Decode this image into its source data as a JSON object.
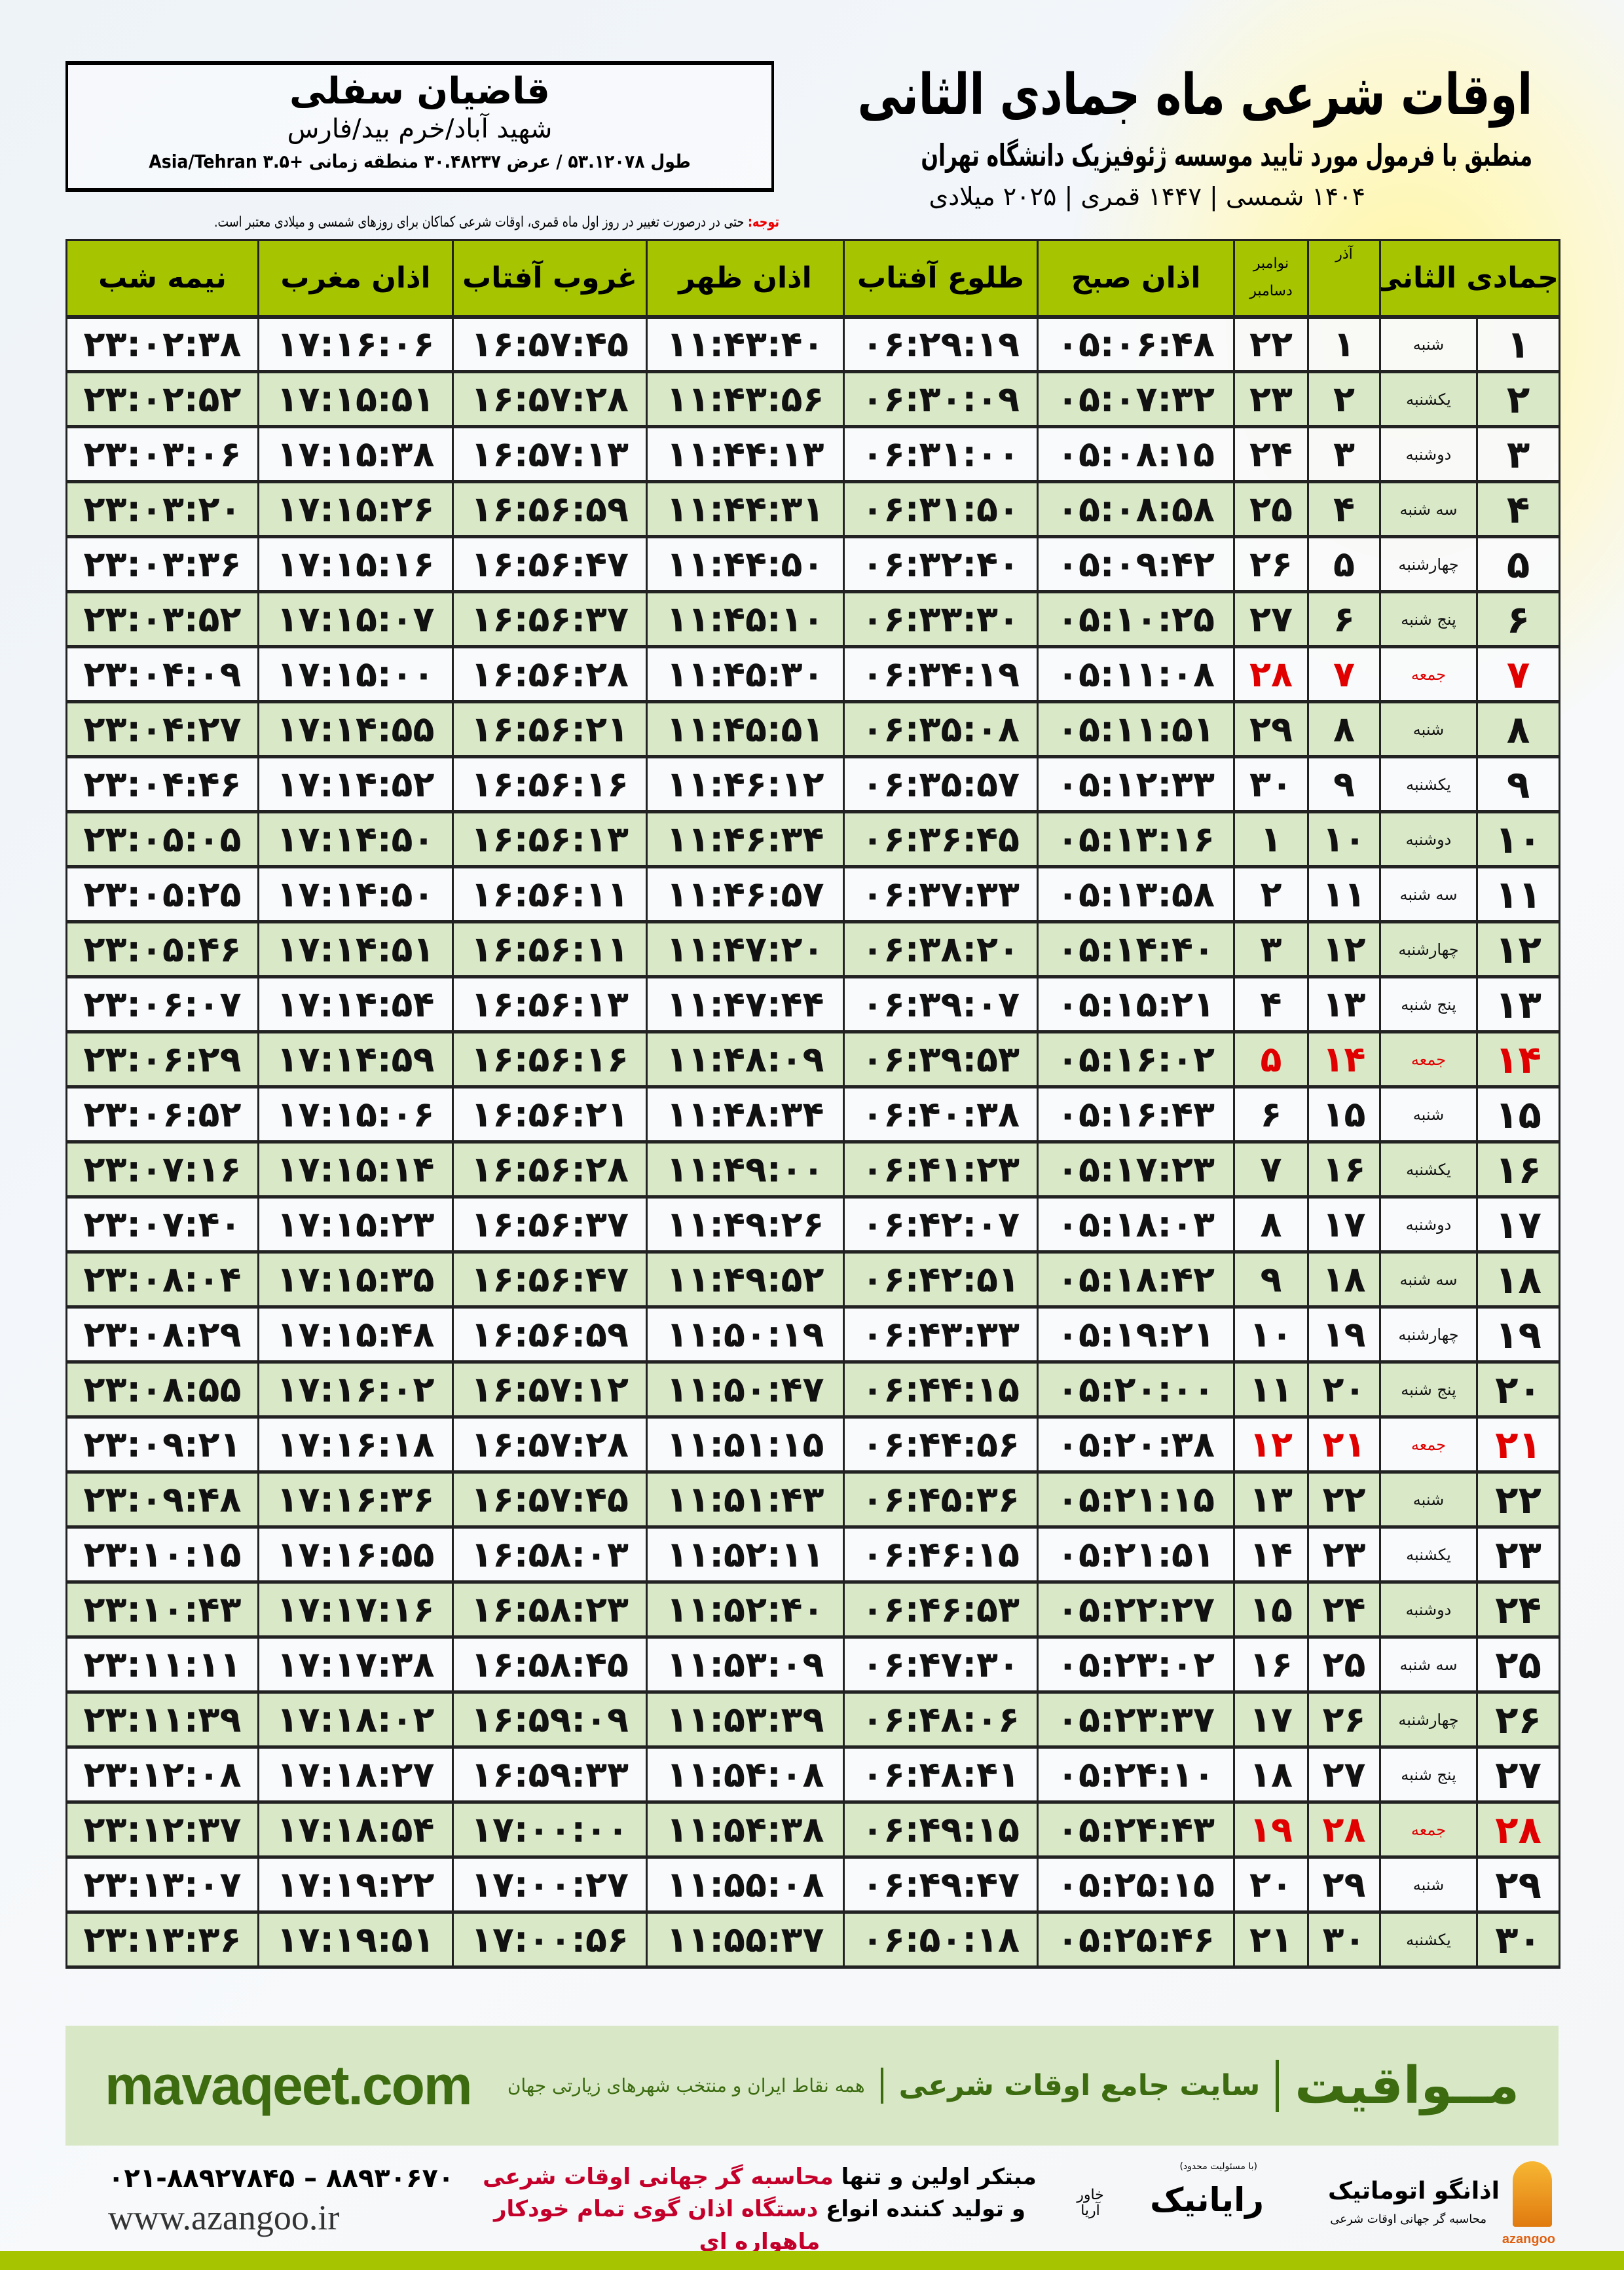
{
  "header": {
    "title": "اوقات شرعی ماه جمادی الثانی",
    "subtitle": "منطبق با فرمول مورد تایید موسسه ژئوفیزیک دانشگاه تهران",
    "years": "۱۴۰۴ شمسی | ۱۴۴۷ قمری | ۲۰۲۵ میلادی"
  },
  "location": {
    "name": "قاضیان سفلی",
    "region": "شهید آباد/خرم بید/فارس",
    "coords": "طول ۵۳.۱۲۰۷۸ / عرض ۳۰.۴۸۲۳۷ منطقه زمانی +۳.۵ Asia/Tehran"
  },
  "note": {
    "label": "توجه:",
    "text": " حتی در درصورت تغییر در روز اول ماه قمری، اوقات شرعی کماکان برای روزهای شمسی و میلادی معتبر است."
  },
  "table": {
    "headers": {
      "month": "جمادی الثانی",
      "azar": "آذر",
      "november": "نوامبر",
      "december": "دسامبر",
      "fajr": "اذان صبح",
      "sunrise": "طلوع آفتاب",
      "dhuhr": "اذان ظهر",
      "sunset": "غروب آفتاب",
      "maghrib": "اذان مغرب",
      "midnight": "نیمه شب"
    },
    "friday_color": "#e00000",
    "rows": [
      {
        "day": "۱",
        "weekday": "شنبه",
        "azar": "۱",
        "greg": "۲۲",
        "fajr": "۰۵:۰۶:۴۸",
        "sunrise": "۰۶:۲۹:۱۹",
        "dhuhr": "۱۱:۴۳:۴۰",
        "sunset": "۱۶:۵۷:۴۵",
        "maghrib": "۱۷:۱۶:۰۶",
        "midnight": "۲۳:۰۲:۳۸",
        "friday": false
      },
      {
        "day": "۲",
        "weekday": "یکشنبه",
        "azar": "۲",
        "greg": "۲۳",
        "fajr": "۰۵:۰۷:۳۲",
        "sunrise": "۰۶:۳۰:۰۹",
        "dhuhr": "۱۱:۴۳:۵۶",
        "sunset": "۱۶:۵۷:۲۸",
        "maghrib": "۱۷:۱۵:۵۱",
        "midnight": "۲۳:۰۲:۵۲",
        "friday": false
      },
      {
        "day": "۳",
        "weekday": "دوشنبه",
        "azar": "۳",
        "greg": "۲۴",
        "fajr": "۰۵:۰۸:۱۵",
        "sunrise": "۰۶:۳۱:۰۰",
        "dhuhr": "۱۱:۴۴:۱۳",
        "sunset": "۱۶:۵۷:۱۳",
        "maghrib": "۱۷:۱۵:۳۸",
        "midnight": "۲۳:۰۳:۰۶",
        "friday": false
      },
      {
        "day": "۴",
        "weekday": "سه شنبه",
        "azar": "۴",
        "greg": "۲۵",
        "fajr": "۰۵:۰۸:۵۸",
        "sunrise": "۰۶:۳۱:۵۰",
        "dhuhr": "۱۱:۴۴:۳۱",
        "sunset": "۱۶:۵۶:۵۹",
        "maghrib": "۱۷:۱۵:۲۶",
        "midnight": "۲۳:۰۳:۲۰",
        "friday": false
      },
      {
        "day": "۵",
        "weekday": "چهارشنبه",
        "azar": "۵",
        "greg": "۲۶",
        "fajr": "۰۵:۰۹:۴۲",
        "sunrise": "۰۶:۳۲:۴۰",
        "dhuhr": "۱۱:۴۴:۵۰",
        "sunset": "۱۶:۵۶:۴۷",
        "maghrib": "۱۷:۱۵:۱۶",
        "midnight": "۲۳:۰۳:۳۶",
        "friday": false
      },
      {
        "day": "۶",
        "weekday": "پنج شنبه",
        "azar": "۶",
        "greg": "۲۷",
        "fajr": "۰۵:۱۰:۲۵",
        "sunrise": "۰۶:۳۳:۳۰",
        "dhuhr": "۱۱:۴۵:۱۰",
        "sunset": "۱۶:۵۶:۳۷",
        "maghrib": "۱۷:۱۵:۰۷",
        "midnight": "۲۳:۰۳:۵۲",
        "friday": false
      },
      {
        "day": "۷",
        "weekday": "جمعه",
        "azar": "۷",
        "greg": "۲۸",
        "fajr": "۰۵:۱۱:۰۸",
        "sunrise": "۰۶:۳۴:۱۹",
        "dhuhr": "۱۱:۴۵:۳۰",
        "sunset": "۱۶:۵۶:۲۸",
        "maghrib": "۱۷:۱۵:۰۰",
        "midnight": "۲۳:۰۴:۰۹",
        "friday": true
      },
      {
        "day": "۸",
        "weekday": "شنبه",
        "azar": "۸",
        "greg": "۲۹",
        "fajr": "۰۵:۱۱:۵۱",
        "sunrise": "۰۶:۳۵:۰۸",
        "dhuhr": "۱۱:۴۵:۵۱",
        "sunset": "۱۶:۵۶:۲۱",
        "maghrib": "۱۷:۱۴:۵۵",
        "midnight": "۲۳:۰۴:۲۷",
        "friday": false
      },
      {
        "day": "۹",
        "weekday": "یکشنبه",
        "azar": "۹",
        "greg": "۳۰",
        "fajr": "۰۵:۱۲:۳۳",
        "sunrise": "۰۶:۳۵:۵۷",
        "dhuhr": "۱۱:۴۶:۱۲",
        "sunset": "۱۶:۵۶:۱۶",
        "maghrib": "۱۷:۱۴:۵۲",
        "midnight": "۲۳:۰۴:۴۶",
        "friday": false
      },
      {
        "day": "۱۰",
        "weekday": "دوشنبه",
        "azar": "۱۰",
        "greg": "۱",
        "fajr": "۰۵:۱۳:۱۶",
        "sunrise": "۰۶:۳۶:۴۵",
        "dhuhr": "۱۱:۴۶:۳۴",
        "sunset": "۱۶:۵۶:۱۳",
        "maghrib": "۱۷:۱۴:۵۰",
        "midnight": "۲۳:۰۵:۰۵",
        "friday": false
      },
      {
        "day": "۱۱",
        "weekday": "سه شنبه",
        "azar": "۱۱",
        "greg": "۲",
        "fajr": "۰۵:۱۳:۵۸",
        "sunrise": "۰۶:۳۷:۳۳",
        "dhuhr": "۱۱:۴۶:۵۷",
        "sunset": "۱۶:۵۶:۱۱",
        "maghrib": "۱۷:۱۴:۵۰",
        "midnight": "۲۳:۰۵:۲۵",
        "friday": false
      },
      {
        "day": "۱۲",
        "weekday": "چهارشنبه",
        "azar": "۱۲",
        "greg": "۳",
        "fajr": "۰۵:۱۴:۴۰",
        "sunrise": "۰۶:۳۸:۲۰",
        "dhuhr": "۱۱:۴۷:۲۰",
        "sunset": "۱۶:۵۶:۱۱",
        "maghrib": "۱۷:۱۴:۵۱",
        "midnight": "۲۳:۰۵:۴۶",
        "friday": false
      },
      {
        "day": "۱۳",
        "weekday": "پنج شنبه",
        "azar": "۱۳",
        "greg": "۴",
        "fajr": "۰۵:۱۵:۲۱",
        "sunrise": "۰۶:۳۹:۰۷",
        "dhuhr": "۱۱:۴۷:۴۴",
        "sunset": "۱۶:۵۶:۱۳",
        "maghrib": "۱۷:۱۴:۵۴",
        "midnight": "۲۳:۰۶:۰۷",
        "friday": false
      },
      {
        "day": "۱۴",
        "weekday": "جمعه",
        "azar": "۱۴",
        "greg": "۵",
        "fajr": "۰۵:۱۶:۰۲",
        "sunrise": "۰۶:۳۹:۵۳",
        "dhuhr": "۱۱:۴۸:۰۹",
        "sunset": "۱۶:۵۶:۱۶",
        "maghrib": "۱۷:۱۴:۵۹",
        "midnight": "۲۳:۰۶:۲۹",
        "friday": true
      },
      {
        "day": "۱۵",
        "weekday": "شنبه",
        "azar": "۱۵",
        "greg": "۶",
        "fajr": "۰۵:۱۶:۴۳",
        "sunrise": "۰۶:۴۰:۳۸",
        "dhuhr": "۱۱:۴۸:۳۴",
        "sunset": "۱۶:۵۶:۲۱",
        "maghrib": "۱۷:۱۵:۰۶",
        "midnight": "۲۳:۰۶:۵۲",
        "friday": false
      },
      {
        "day": "۱۶",
        "weekday": "یکشنبه",
        "azar": "۱۶",
        "greg": "۷",
        "fajr": "۰۵:۱۷:۲۳",
        "sunrise": "۰۶:۴۱:۲۳",
        "dhuhr": "۱۱:۴۹:۰۰",
        "sunset": "۱۶:۵۶:۲۸",
        "maghrib": "۱۷:۱۵:۱۴",
        "midnight": "۲۳:۰۷:۱۶",
        "friday": false
      },
      {
        "day": "۱۷",
        "weekday": "دوشنبه",
        "azar": "۱۷",
        "greg": "۸",
        "fajr": "۰۵:۱۸:۰۳",
        "sunrise": "۰۶:۴۲:۰۷",
        "dhuhr": "۱۱:۴۹:۲۶",
        "sunset": "۱۶:۵۶:۳۷",
        "maghrib": "۱۷:۱۵:۲۳",
        "midnight": "۲۳:۰۷:۴۰",
        "friday": false
      },
      {
        "day": "۱۸",
        "weekday": "سه شنبه",
        "azar": "۱۸",
        "greg": "۹",
        "fajr": "۰۵:۱۸:۴۲",
        "sunrise": "۰۶:۴۲:۵۱",
        "dhuhr": "۱۱:۴۹:۵۲",
        "sunset": "۱۶:۵۶:۴۷",
        "maghrib": "۱۷:۱۵:۳۵",
        "midnight": "۲۳:۰۸:۰۴",
        "friday": false
      },
      {
        "day": "۱۹",
        "weekday": "چهارشنبه",
        "azar": "۱۹",
        "greg": "۱۰",
        "fajr": "۰۵:۱۹:۲۱",
        "sunrise": "۰۶:۴۳:۳۳",
        "dhuhr": "۱۱:۵۰:۱۹",
        "sunset": "۱۶:۵۶:۵۹",
        "maghrib": "۱۷:۱۵:۴۸",
        "midnight": "۲۳:۰۸:۲۹",
        "friday": false
      },
      {
        "day": "۲۰",
        "weekday": "پنج شنبه",
        "azar": "۲۰",
        "greg": "۱۱",
        "fajr": "۰۵:۲۰:۰۰",
        "sunrise": "۰۶:۴۴:۱۵",
        "dhuhr": "۱۱:۵۰:۴۷",
        "sunset": "۱۶:۵۷:۱۲",
        "maghrib": "۱۷:۱۶:۰۲",
        "midnight": "۲۳:۰۸:۵۵",
        "friday": false
      },
      {
        "day": "۲۱",
        "weekday": "جمعه",
        "azar": "۲۱",
        "greg": "۱۲",
        "fajr": "۰۵:۲۰:۳۸",
        "sunrise": "۰۶:۴۴:۵۶",
        "dhuhr": "۱۱:۵۱:۱۵",
        "sunset": "۱۶:۵۷:۲۸",
        "maghrib": "۱۷:۱۶:۱۸",
        "midnight": "۲۳:۰۹:۲۱",
        "friday": true
      },
      {
        "day": "۲۲",
        "weekday": "شنبه",
        "azar": "۲۲",
        "greg": "۱۳",
        "fajr": "۰۵:۲۱:۱۵",
        "sunrise": "۰۶:۴۵:۳۶",
        "dhuhr": "۱۱:۵۱:۴۳",
        "sunset": "۱۶:۵۷:۴۵",
        "maghrib": "۱۷:۱۶:۳۶",
        "midnight": "۲۳:۰۹:۴۸",
        "friday": false
      },
      {
        "day": "۲۳",
        "weekday": "یکشنبه",
        "azar": "۲۳",
        "greg": "۱۴",
        "fajr": "۰۵:۲۱:۵۱",
        "sunrise": "۰۶:۴۶:۱۵",
        "dhuhr": "۱۱:۵۲:۱۱",
        "sunset": "۱۶:۵۸:۰۳",
        "maghrib": "۱۷:۱۶:۵۵",
        "midnight": "۲۳:۱۰:۱۵",
        "friday": false
      },
      {
        "day": "۲۴",
        "weekday": "دوشنبه",
        "azar": "۲۴",
        "greg": "۱۵",
        "fajr": "۰۵:۲۲:۲۷",
        "sunrise": "۰۶:۴۶:۵۳",
        "dhuhr": "۱۱:۵۲:۴۰",
        "sunset": "۱۶:۵۸:۲۳",
        "maghrib": "۱۷:۱۷:۱۶",
        "midnight": "۲۳:۱۰:۴۳",
        "friday": false
      },
      {
        "day": "۲۵",
        "weekday": "سه شنبه",
        "azar": "۲۵",
        "greg": "۱۶",
        "fajr": "۰۵:۲۳:۰۲",
        "sunrise": "۰۶:۴۷:۳۰",
        "dhuhr": "۱۱:۵۳:۰۹",
        "sunset": "۱۶:۵۸:۴۵",
        "maghrib": "۱۷:۱۷:۳۸",
        "midnight": "۲۳:۱۱:۱۱",
        "friday": false
      },
      {
        "day": "۲۶",
        "weekday": "چهارشنبه",
        "azar": "۲۶",
        "greg": "۱۷",
        "fajr": "۰۵:۲۳:۳۷",
        "sunrise": "۰۶:۴۸:۰۶",
        "dhuhr": "۱۱:۵۳:۳۹",
        "sunset": "۱۶:۵۹:۰۹",
        "maghrib": "۱۷:۱۸:۰۲",
        "midnight": "۲۳:۱۱:۳۹",
        "friday": false
      },
      {
        "day": "۲۷",
        "weekday": "پنج شنبه",
        "azar": "۲۷",
        "greg": "۱۸",
        "fajr": "۰۵:۲۴:۱۰",
        "sunrise": "۰۶:۴۸:۴۱",
        "dhuhr": "۱۱:۵۴:۰۸",
        "sunset": "۱۶:۵۹:۳۳",
        "maghrib": "۱۷:۱۸:۲۷",
        "midnight": "۲۳:۱۲:۰۸",
        "friday": false
      },
      {
        "day": "۲۸",
        "weekday": "جمعه",
        "azar": "۲۸",
        "greg": "۱۹",
        "fajr": "۰۵:۲۴:۴۳",
        "sunrise": "۰۶:۴۹:۱۵",
        "dhuhr": "۱۱:۵۴:۳۸",
        "sunset": "۱۷:۰۰:۰۰",
        "maghrib": "۱۷:۱۸:۵۴",
        "midnight": "۲۳:۱۲:۳۷",
        "friday": true
      },
      {
        "day": "۲۹",
        "weekday": "شنبه",
        "azar": "۲۹",
        "greg": "۲۰",
        "fajr": "۰۵:۲۵:۱۵",
        "sunrise": "۰۶:۴۹:۴۷",
        "dhuhr": "۱۱:۵۵:۰۸",
        "sunset": "۱۷:۰۰:۲۷",
        "maghrib": "۱۷:۱۹:۲۲",
        "midnight": "۲۳:۱۳:۰۷",
        "friday": false
      },
      {
        "day": "۳۰",
        "weekday": "یکشنبه",
        "azar": "۳۰",
        "greg": "۲۱",
        "fajr": "۰۵:۲۵:۴۶",
        "sunrise": "۰۶:۵۰:۱۸",
        "dhuhr": "۱۱:۵۵:۳۷",
        "sunset": "۱۷:۰۰:۵۶",
        "maghrib": "۱۷:۱۹:۵۱",
        "midnight": "۲۳:۱۳:۳۶",
        "friday": false
      }
    ]
  },
  "ad": {
    "brand": "مــواقیت",
    "tagline": "سایت جامع اوقات شرعی",
    "tagline2": "همه نقاط ایران و منتخب شهرهای زیارتی جهان",
    "url": "mavaqeet.com",
    "color": "#3c6b10",
    "background": "#d8e8c6"
  },
  "footer": {
    "phone": "۰۲۱-۸۸۹۲۷۸۴۵ – ۸۸۹۳۰۶۷۰",
    "website": "www.azangoo.ir",
    "line1_prefix": "مبتکر اولین و تنها ",
    "line1_highlight": "محاسبه گر جهانی اوقات شرعی",
    "line2_prefix": "و تولید کننده انواع ",
    "line2_highlight": "دستگاه اذان گوی تمام خودکار ماهواره ای",
    "rayanik_name": "رایانیک",
    "rayanik_sub": "خاور آریا",
    "rayanik_ltd": "(با مسئولیت محدود)",
    "azangoo_name": "اذانگو اتوماتیک",
    "azangoo_tag": "محاسبه گر جهانی اوقات شرعی",
    "azangoo_latin": "azangoo"
  }
}
